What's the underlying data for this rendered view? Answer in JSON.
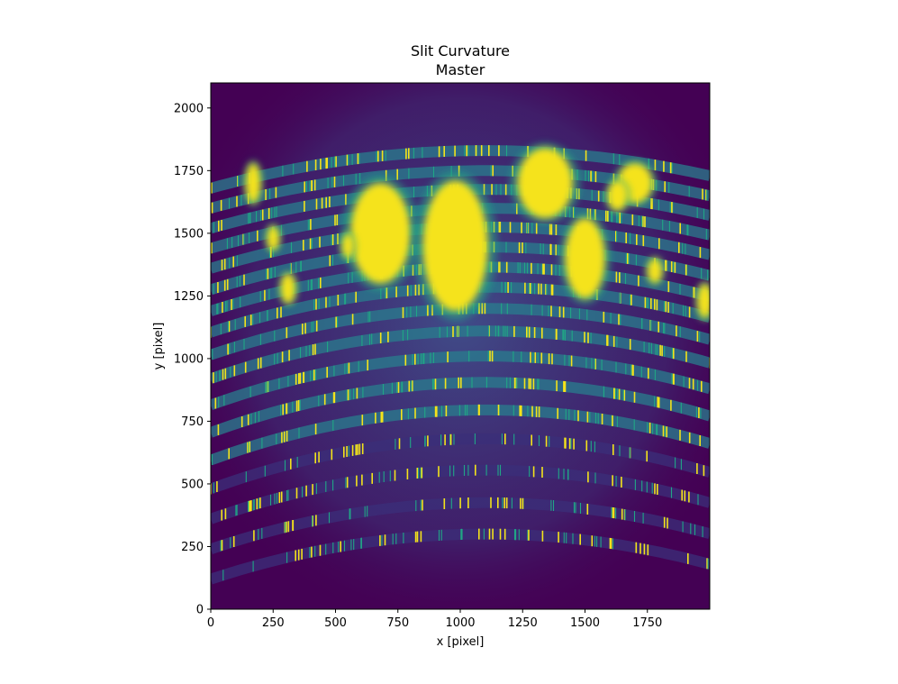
{
  "chart_data": {
    "type": "heatmap",
    "title": "Slit Curvature",
    "subtitle": "Master",
    "xlabel": "x [pixel]",
    "ylabel": "y [pixel]",
    "xlim": [
      0,
      2000
    ],
    "ylim": [
      0,
      2100
    ],
    "colormap": "viridis",
    "colors": {
      "background": "#440154",
      "low": "#3b2f7a",
      "mid": "#2a7d8e",
      "high": "#21a685",
      "saturated": "#f5e31a"
    },
    "xticks": [
      0,
      250,
      500,
      750,
      1000,
      1250,
      1500,
      1750
    ],
    "xtick_labels": [
      "0",
      "250",
      "500",
      "750",
      "1000",
      "1250",
      "1500",
      "1750"
    ],
    "yticks": [
      0,
      250,
      500,
      750,
      1000,
      1250,
      1500,
      1750,
      2000
    ],
    "ytick_labels": [
      "0",
      "250",
      "500",
      "750",
      "1000",
      "1250",
      "1500",
      "1750",
      "2000"
    ],
    "orders": [
      {
        "y_center": 1830,
        "y_edge": 1680
      },
      {
        "y_center": 1750,
        "y_edge": 1600
      },
      {
        "y_center": 1675,
        "y_edge": 1520
      },
      {
        "y_center": 1600,
        "y_edge": 1440
      },
      {
        "y_center": 1525,
        "y_edge": 1360
      },
      {
        "y_center": 1445,
        "y_edge": 1275
      },
      {
        "y_center": 1365,
        "y_edge": 1190
      },
      {
        "y_center": 1285,
        "y_edge": 1105
      },
      {
        "y_center": 1200,
        "y_edge": 1015
      },
      {
        "y_center": 1110,
        "y_edge": 920
      },
      {
        "y_center": 1010,
        "y_edge": 815
      },
      {
        "y_center": 905,
        "y_edge": 705
      },
      {
        "y_center": 795,
        "y_edge": 595
      },
      {
        "y_center": 680,
        "y_edge": 480
      },
      {
        "y_center": 555,
        "y_edge": 360
      },
      {
        "y_center": 425,
        "y_edge": 240
      },
      {
        "y_center": 300,
        "y_edge": 120
      }
    ],
    "saturated_blobs": [
      {
        "x": 680,
        "y": 1500,
        "rx": 120,
        "ry": 200
      },
      {
        "x": 980,
        "y": 1450,
        "rx": 130,
        "ry": 260
      },
      {
        "x": 1340,
        "y": 1700,
        "rx": 110,
        "ry": 140
      },
      {
        "x": 1500,
        "y": 1400,
        "rx": 80,
        "ry": 160
      },
      {
        "x": 1700,
        "y": 1700,
        "rx": 70,
        "ry": 80
      },
      {
        "x": 170,
        "y": 1700,
        "rx": 30,
        "ry": 80
      },
      {
        "x": 310,
        "y": 1280,
        "rx": 30,
        "ry": 60
      },
      {
        "x": 250,
        "y": 1480,
        "rx": 25,
        "ry": 50
      },
      {
        "x": 1780,
        "y": 1350,
        "rx": 30,
        "ry": 50
      },
      {
        "x": 1980,
        "y": 1230,
        "rx": 30,
        "ry": 70
      },
      {
        "x": 550,
        "y": 1450,
        "rx": 25,
        "ry": 50
      },
      {
        "x": 1630,
        "y": 1650,
        "rx": 40,
        "ry": 60
      }
    ]
  }
}
